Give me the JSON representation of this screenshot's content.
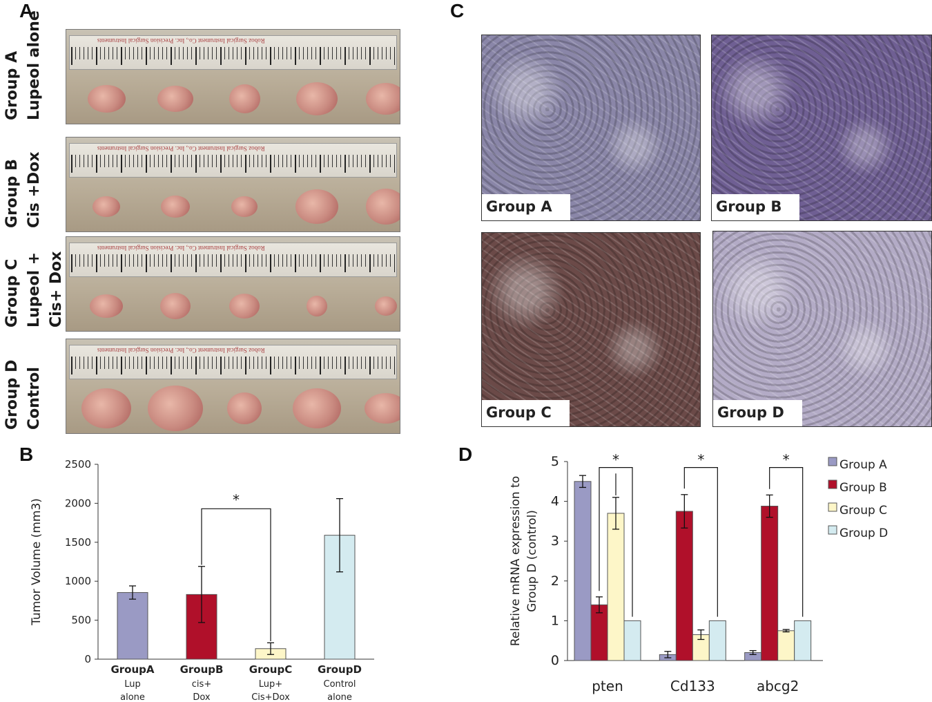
{
  "panels": {
    "a": "A",
    "b": "B",
    "c": "C",
    "d": "D"
  },
  "panel_a": {
    "rows": [
      {
        "group": "Group A",
        "treatment_lines": [
          "Lupeol alone"
        ],
        "tumors": 5
      },
      {
        "group": "Group B",
        "treatment_lines": [
          "Cis +Dox"
        ],
        "tumors": 5
      },
      {
        "group": "Group C",
        "treatment_lines": [
          "Lupeol +",
          "Cis+ Dox"
        ],
        "tumors": 5
      },
      {
        "group": "Group D",
        "treatment_lines": [
          "Control"
        ],
        "tumors": 5
      }
    ],
    "ruler_text": "Roboz Surgical Instrument Co., Inc.    Precision Surgical Instruments"
  },
  "panel_c": {
    "images": [
      {
        "label": "Group A",
        "tint": "#8a86a8"
      },
      {
        "label": "Group B",
        "tint": "#6f5f93"
      },
      {
        "label": "Group C",
        "tint": "#6b4a48"
      },
      {
        "label": "Group D",
        "tint": "#b3abc6"
      }
    ]
  },
  "chart_data": [
    {
      "type": "bar",
      "panel": "B",
      "ylabel": "Tumor Volume (mm3)",
      "ylim": [
        0,
        2500
      ],
      "yticks": [
        0,
        500,
        1000,
        1500,
        2000,
        2500
      ],
      "categories": [
        {
          "name": "GroupA",
          "sub": [
            "Lup",
            "alone"
          ]
        },
        {
          "name": "GroupB",
          "sub": [
            "cis+",
            "Dox"
          ]
        },
        {
          "name": "GroupC",
          "sub": [
            "Lup+",
            "Cis+Dox"
          ]
        },
        {
          "name": "GroupD",
          "sub": [
            "Control",
            "alone"
          ]
        }
      ],
      "values": [
        855,
        830,
        135,
        1590
      ],
      "errors": [
        85,
        360,
        75,
        470
      ],
      "colors": [
        "#9a9ac4",
        "#b0102a",
        "#fdf6c8",
        "#d4ebf0"
      ],
      "significance": {
        "from": 1,
        "to": 2,
        "label": "*"
      }
    },
    {
      "type": "bar",
      "panel": "D",
      "ylabel_lines": [
        "Relative mRNA expression to",
        "Group D (control)"
      ],
      "ylim": [
        0,
        5
      ],
      "yticks": [
        0,
        1,
        2,
        3,
        4,
        5
      ],
      "categories": [
        "pten",
        "Cd133",
        "abcg2"
      ],
      "series": [
        {
          "name": "Group A",
          "color": "#9a9ac4",
          "values": [
            4.5,
            0.15,
            0.2
          ],
          "errors": [
            0.15,
            0.08,
            0.05
          ]
        },
        {
          "name": "Group B",
          "color": "#b0102a",
          "values": [
            1.4,
            3.75,
            3.88
          ],
          "errors": [
            0.2,
            0.42,
            0.28
          ]
        },
        {
          "name": "Group C",
          "color": "#fdf6c8",
          "values": [
            3.7,
            0.65,
            0.75
          ],
          "errors": [
            0.4,
            0.12,
            0.03
          ]
        },
        {
          "name": "Group D",
          "color": "#d4ebf0",
          "values": [
            1.0,
            1.0,
            1.0
          ],
          "errors": [
            0,
            0,
            0
          ]
        }
      ],
      "significance_label": "*"
    }
  ]
}
